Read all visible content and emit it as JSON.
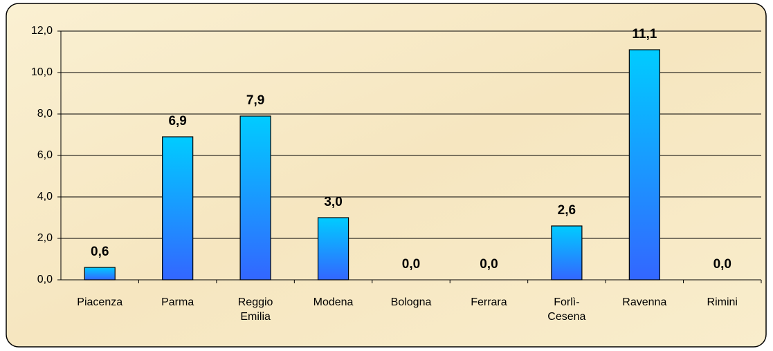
{
  "chart_data": {
    "type": "bar",
    "categories": [
      "Piacenza",
      "Parma",
      "Reggio Emilia",
      "Modena",
      "Bologna",
      "Ferrara",
      "Forlì-Cesena",
      "Ravenna",
      "Rimini"
    ],
    "values": [
      0.6,
      6.9,
      7.9,
      3.0,
      0,
      0,
      2.6,
      11.1,
      0
    ],
    "value_labels": [
      "0,6",
      "6,9",
      "7,9",
      "3,0",
      "0,0",
      "0,0",
      "2,6",
      "11,1",
      "0,0"
    ],
    "color": "#1a9cff",
    "ylim": [
      0,
      12
    ],
    "yticks": [
      {
        "value": 0,
        "label": "0,0"
      },
      {
        "value": 2,
        "label": "2,0"
      },
      {
        "value": 4,
        "label": "4,0"
      },
      {
        "value": 6,
        "label": "6,0"
      },
      {
        "value": 8,
        "label": "8,0"
      },
      {
        "value": 10,
        "label": "10,0"
      },
      {
        "value": 12,
        "label": "12,0"
      }
    ],
    "grid": true
  }
}
